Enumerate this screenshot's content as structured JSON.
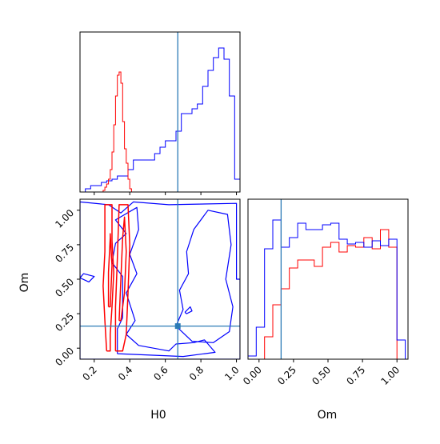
{
  "chart_data": {
    "type": "corner",
    "parameters": [
      "H0",
      "Om"
    ],
    "truth": {
      "H0": 0.67,
      "Om": 0.16
    },
    "colors": {
      "red": "#ff0000",
      "blue": "#0000ff",
      "truth": "#2c7bb6"
    },
    "ranges": {
      "H0": [
        0.12,
        1.02
      ],
      "Om": [
        -0.08,
        1.08
      ]
    },
    "h0_xlabel": "H0",
    "om_xlabel": "Om",
    "om_ylabel": "Om",
    "h0_ticks": [
      0.2,
      0.4,
      0.6,
      0.8,
      1.0
    ],
    "h0_tick_labels": [
      "0.2",
      "0.4",
      "0.6",
      "0.8",
      "1.0"
    ],
    "om_ticks": [
      0.0,
      0.25,
      0.5,
      0.75,
      1.0
    ],
    "om_tick_labels": [
      "0.00",
      "0.25",
      "0.50",
      "0.75",
      "1.00"
    ],
    "hist_h0": {
      "red": {
        "edges": [
          0.25,
          0.26,
          0.27,
          0.28,
          0.29,
          0.3,
          0.31,
          0.32,
          0.33,
          0.34,
          0.35,
          0.36,
          0.37,
          0.38,
          0.39,
          0.4,
          0.41,
          0.42
        ],
        "counts": [
          0.01,
          0.03,
          0.05,
          0.08,
          0.14,
          0.25,
          0.42,
          0.6,
          0.73,
          0.75,
          0.68,
          0.44,
          0.27,
          0.18,
          0.08,
          0.02,
          0.0
        ]
      },
      "blue": {
        "edges": [
          0.12,
          0.15,
          0.18,
          0.21,
          0.24,
          0.27,
          0.3,
          0.33,
          0.36,
          0.39,
          0.42,
          0.45,
          0.48,
          0.51,
          0.54,
          0.57,
          0.6,
          0.63,
          0.66,
          0.69,
          0.72,
          0.75,
          0.78,
          0.81,
          0.84,
          0.87,
          0.9,
          0.93,
          0.96,
          0.99,
          1.02
        ],
        "counts": [
          0.0,
          0.02,
          0.04,
          0.04,
          0.06,
          0.07,
          0.08,
          0.1,
          0.1,
          0.14,
          0.2,
          0.2,
          0.2,
          0.2,
          0.24,
          0.28,
          0.32,
          0.32,
          0.38,
          0.49,
          0.49,
          0.52,
          0.55,
          0.66,
          0.76,
          0.84,
          0.9,
          0.83,
          0.6,
          0.08
        ]
      }
    },
    "hist_om": {
      "red": {
        "edges": [
          -0.08,
          -0.02,
          0.04,
          0.1,
          0.16,
          0.22,
          0.28,
          0.34,
          0.4,
          0.46,
          0.52,
          0.58,
          0.64,
          0.7,
          0.76,
          0.82,
          0.88,
          0.94,
          1.0
        ],
        "counts": [
          0.0,
          0.0,
          0.14,
          0.34,
          0.44,
          0.57,
          0.62,
          0.62,
          0.58,
          0.7,
          0.73,
          0.67,
          0.71,
          0.7,
          0.76,
          0.69,
          0.81,
          0.7
        ]
      },
      "blue": {
        "edges": [
          -0.08,
          -0.02,
          0.04,
          0.1,
          0.16,
          0.22,
          0.28,
          0.34,
          0.4,
          0.46,
          0.52,
          0.58,
          0.64,
          0.7,
          0.76,
          0.82,
          0.88,
          0.94,
          1.0,
          1.06
        ],
        "counts": [
          0.02,
          0.2,
          0.69,
          0.87,
          0.7,
          0.76,
          0.85,
          0.81,
          0.81,
          0.84,
          0.85,
          0.75,
          0.72,
          0.73,
          0.7,
          0.74,
          0.71,
          0.75,
          0.12
        ]
      }
    },
    "contours": {
      "red": [
        [
          [
            0.27,
            -0.02
          ],
          [
            0.26,
            0.2
          ],
          [
            0.25,
            0.45
          ],
          [
            0.26,
            0.7
          ],
          [
            0.26,
            1.04
          ],
          [
            0.3,
            1.04
          ],
          [
            0.3,
            0.78
          ],
          [
            0.31,
            0.55
          ],
          [
            0.3,
            0.3
          ],
          [
            0.29,
            0.1
          ],
          [
            0.29,
            -0.02
          ],
          [
            0.27,
            -0.02
          ]
        ],
        [
          [
            0.32,
            -0.02
          ],
          [
            0.32,
            0.3
          ],
          [
            0.33,
            0.65
          ],
          [
            0.34,
            1.04
          ],
          [
            0.39,
            1.04
          ],
          [
            0.4,
            0.75
          ],
          [
            0.39,
            0.4
          ],
          [
            0.38,
            0.1
          ],
          [
            0.36,
            -0.02
          ],
          [
            0.32,
            -0.02
          ]
        ],
        [
          [
            0.28,
            0.3
          ],
          [
            0.28,
            0.55
          ],
          [
            0.29,
            0.8
          ],
          [
            0.29,
            0.83
          ],
          [
            0.3,
            0.6
          ],
          [
            0.29,
            0.3
          ],
          [
            0.28,
            0.3
          ]
        ],
        [
          [
            0.34,
            0.2
          ],
          [
            0.35,
            0.5
          ],
          [
            0.36,
            0.8
          ],
          [
            0.37,
            0.95
          ],
          [
            0.38,
            0.7
          ],
          [
            0.37,
            0.4
          ],
          [
            0.35,
            0.2
          ],
          [
            0.34,
            0.2
          ]
        ]
      ],
      "blue": [
        [
          [
            0.12,
            1.06
          ],
          [
            0.12,
            -0.08
          ],
          [
            1.02,
            -0.08
          ],
          [
            1.02,
            0.5
          ],
          [
            1.0,
            0.5
          ],
          [
            1.0,
            1.05
          ],
          [
            0.62,
            1.04
          ],
          [
            0.42,
            1.06
          ],
          [
            0.35,
            0.98
          ],
          [
            0.28,
            1.04
          ],
          [
            0.12,
            1.06
          ]
        ],
        [
          [
            0.33,
            -0.04
          ],
          [
            0.33,
            0.14
          ],
          [
            0.36,
            0.22
          ],
          [
            0.36,
            0.52
          ],
          [
            0.3,
            0.62
          ],
          [
            0.32,
            0.76
          ],
          [
            0.38,
            0.83
          ],
          [
            0.32,
            0.93
          ],
          [
            0.44,
            1.02
          ],
          [
            0.45,
            0.86
          ],
          [
            0.4,
            0.68
          ],
          [
            0.44,
            0.54
          ],
          [
            0.38,
            0.4
          ],
          [
            0.43,
            0.2
          ],
          [
            0.38,
            0.1
          ],
          [
            0.45,
            0.02
          ],
          [
            0.62,
            -0.02
          ],
          [
            0.66,
            0.03
          ],
          [
            0.76,
            0.04
          ],
          [
            0.82,
            0.06
          ],
          [
            0.88,
            -0.03
          ],
          [
            0.7,
            -0.06
          ],
          [
            0.33,
            -0.04
          ]
        ],
        [
          [
            0.66,
            0.16
          ],
          [
            0.7,
            0.28
          ],
          [
            0.68,
            0.42
          ],
          [
            0.73,
            0.54
          ],
          [
            0.72,
            0.7
          ],
          [
            0.76,
            0.86
          ],
          [
            0.84,
            1.0
          ],
          [
            0.95,
            0.97
          ],
          [
            0.97,
            0.75
          ],
          [
            0.94,
            0.5
          ],
          [
            0.98,
            0.3
          ],
          [
            0.96,
            0.12
          ],
          [
            0.87,
            0.04
          ],
          [
            0.75,
            0.05
          ],
          [
            0.66,
            0.16
          ]
        ],
        [
          [
            0.71,
            0.26
          ],
          [
            0.74,
            0.3
          ],
          [
            0.75,
            0.27
          ],
          [
            0.72,
            0.25
          ],
          [
            0.71,
            0.26
          ]
        ],
        [
          [
            0.12,
            0.51
          ],
          [
            0.17,
            0.48
          ],
          [
            0.2,
            0.52
          ],
          [
            0.14,
            0.54
          ],
          [
            0.12,
            0.51
          ]
        ]
      ]
    }
  }
}
